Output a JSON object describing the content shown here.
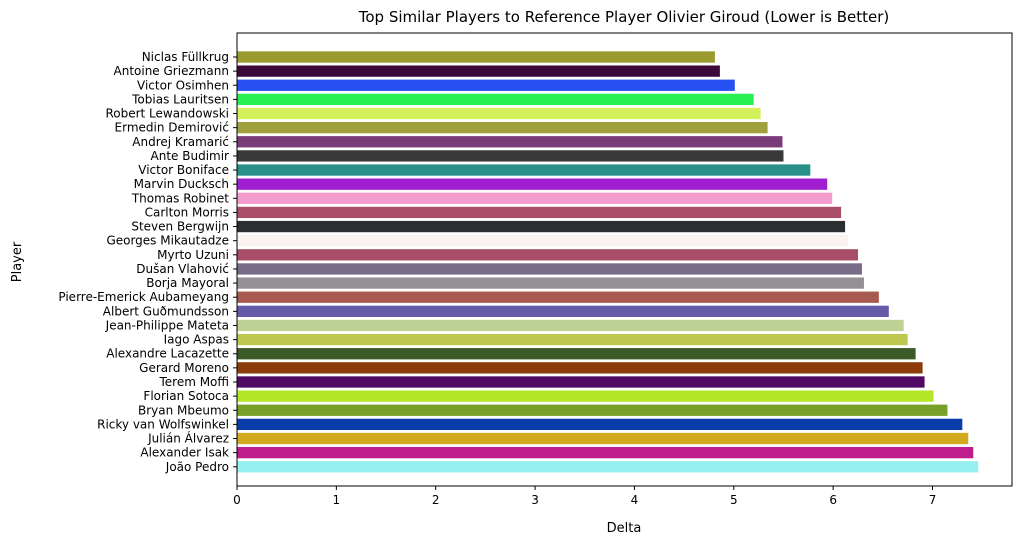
{
  "chart_data": {
    "type": "bar",
    "orientation": "horizontal",
    "title": "Top Similar Players to Reference Player Olivier Giroud (Lower is Better)",
    "xlabel": "Delta",
    "ylabel": "Player",
    "xlim": [
      0,
      7.8
    ],
    "xticks": [
      0,
      1,
      2,
      3,
      4,
      5,
      6,
      7
    ],
    "grid": false,
    "categories": [
      "Niclas Füllkrug",
      "Antoine Griezmann",
      "Victor Osimhen",
      "Tobias Lauritsen",
      "Robert Lewandowski",
      "Ermedin Demirović",
      "Andrej Kramarić",
      "Ante Budimir",
      "Victor Boniface",
      "Marvin Ducksch",
      "Thomas Robinet",
      "Carlton Morris",
      "Steven Bergwijn",
      "Georges Mikautadze",
      "Myrto Uzuni",
      "Dušan Vlahović",
      "Borja Mayoral",
      "Pierre-Emerick Aubameyang",
      "Albert Guðmundsson",
      "Jean-Philippe Mateta",
      "Iago Aspas",
      "Alexandre Lacazette",
      "Gerard Moreno",
      "Terem Moffi",
      "Florian Sotoca",
      "Bryan Mbeumo",
      "Ricky van Wolfswinkel",
      "Julián Álvarez",
      "Alexander Isak",
      "João Pedro"
    ],
    "values": [
      4.81,
      4.86,
      5.01,
      5.2,
      5.27,
      5.34,
      5.49,
      5.5,
      5.77,
      5.94,
      5.99,
      6.08,
      6.12,
      6.15,
      6.25,
      6.29,
      6.31,
      6.46,
      6.56,
      6.71,
      6.75,
      6.83,
      6.9,
      6.92,
      7.01,
      7.15,
      7.3,
      7.36,
      7.41,
      7.46
    ],
    "colors": [
      "#9a9a2e",
      "#3c0a3a",
      "#2750f0",
      "#28f050",
      "#d2f05a",
      "#a0a03c",
      "#7a3c78",
      "#383838",
      "#289088",
      "#a01ed2",
      "#f59cce",
      "#a84e68",
      "#2c2f2f",
      "#fbf3f0",
      "#a84e68",
      "#786c88",
      "#959096",
      "#a85a50",
      "#645aa8",
      "#bed296",
      "#bec850",
      "#3c5a28",
      "#8c3c0a",
      "#500a64",
      "#b4e628",
      "#78a028",
      "#0a3caa",
      "#d2aa1e",
      "#be1e8c",
      "#96f0f0"
    ]
  }
}
